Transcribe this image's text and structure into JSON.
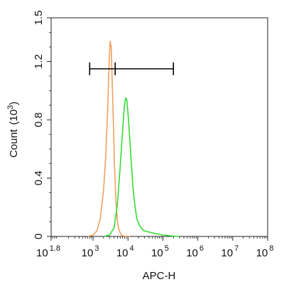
{
  "chart_data": {
    "type": "line",
    "title": "",
    "xlabel": "APC-H",
    "ylabel": "Count",
    "ylabel_unit_base": "(10",
    "ylabel_unit_exp": "3",
    "ylabel_unit_close": ")",
    "x_scale": "log",
    "xlim": [
      63,
      100000000
    ],
    "ylim": [
      0,
      1.5
    ],
    "x_ticks": [
      {
        "base": "10",
        "exp": "1.8",
        "value": 63
      },
      {
        "base": "10",
        "exp": "3",
        "value": 1000
      },
      {
        "base": "10",
        "exp": "4",
        "value": 10000
      },
      {
        "base": "10",
        "exp": "5",
        "value": 100000
      },
      {
        "base": "10",
        "exp": "6",
        "value": 1000000
      },
      {
        "base": "10",
        "exp": "7",
        "value": 10000000
      },
      {
        "base": "10",
        "exp": "8",
        "value": 100000000
      }
    ],
    "y_ticks": [
      {
        "label": "0",
        "value": 0
      },
      {
        "label": "0.4",
        "value": 0.4
      },
      {
        "label": "0.8",
        "value": 0.8
      },
      {
        "label": "1.2",
        "value": 1.2
      },
      {
        "label": "1.5",
        "value": 1.5
      }
    ],
    "grid": false,
    "legend": "none",
    "series": [
      {
        "color": "#f0a060",
        "x": [
          700,
          1000,
          1300,
          1600,
          2000,
          2300,
          2600,
          2800,
          3000,
          3100,
          3300,
          3500,
          3800,
          4100,
          4500,
          5000,
          5600,
          6300,
          7000,
          8000,
          9500,
          11000
        ],
        "y": [
          0,
          0.01,
          0.04,
          0.12,
          0.32,
          0.55,
          0.85,
          1.1,
          1.28,
          1.34,
          1.3,
          1.1,
          0.8,
          0.5,
          0.25,
          0.1,
          0.04,
          0.015,
          0.005,
          0.002,
          0.001,
          0
        ]
      },
      {
        "color": "#33dd33",
        "x": [
          2000,
          3000,
          4000,
          5000,
          6000,
          7000,
          7800,
          8500,
          9200,
          10000,
          11000,
          12500,
          14000,
          16000,
          18000,
          22000,
          28000,
          40000,
          60000,
          100000,
          200000,
          300000
        ],
        "y": [
          0,
          0.01,
          0.06,
          0.22,
          0.48,
          0.72,
          0.88,
          0.95,
          0.94,
          0.85,
          0.7,
          0.5,
          0.33,
          0.2,
          0.12,
          0.07,
          0.04,
          0.03,
          0.02,
          0.01,
          0.002,
          0
        ]
      }
    ],
    "gate": {
      "x_start": 800,
      "x_end": 200000,
      "y": 1.15,
      "mid_x": 4300
    }
  }
}
